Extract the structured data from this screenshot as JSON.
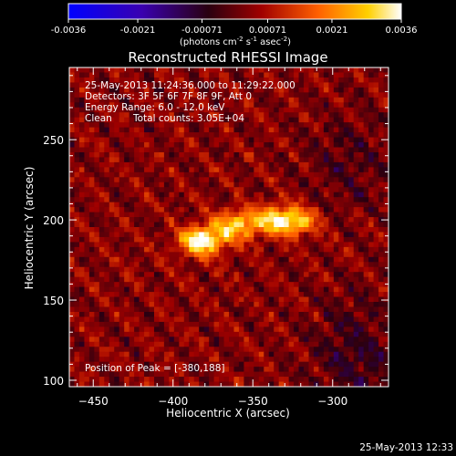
{
  "chart_data": {
    "type": "heatmap",
    "title": "Reconstructed RHESSI Image",
    "xlabel": "Heliocentric X (arcsec)",
    "ylabel": "Heliocentric Y (arcsec)",
    "xlim": [
      -465,
      -265
    ],
    "ylim": [
      96,
      295
    ],
    "x_ticks": [
      -450,
      -400,
      -350,
      -300
    ],
    "y_ticks": [
      100,
      150,
      200,
      250
    ],
    "colorbar": {
      "range": [
        -0.0036,
        0.0036
      ],
      "ticks": [
        "-0.0036",
        "-0.0021",
        "-0.00071",
        "0.00071",
        "0.0021",
        "0.0036"
      ],
      "unit_label": "(photons cm",
      "unit_sup1": "-2",
      "unit_mid": " s",
      "unit_sup2": "-1",
      "unit_mid2": " asec",
      "unit_sup3": "-2",
      "unit_end": ")",
      "colormap": "blue-purple-red-orange-yellow-white"
    },
    "annotations": {
      "line1": "25-May-2013 11:24:36.000 to 11:29:22.000",
      "line2": "Detectors: 3F 5F 6F 7F 8F 9F, Att 0",
      "line3": "Energy Range: 6.0 - 12.0 keV",
      "line4_a": "Clean",
      "line4_b": "Total counts: 3.05E+04",
      "peak_label": "Position of Peak = [-380,188]"
    },
    "peak": {
      "x": -380,
      "y": 188
    },
    "source": {
      "description_points": [
        {
          "x": -382,
          "y": 187,
          "amp": 0.0036
        },
        {
          "x": -360,
          "y": 197,
          "amp": 0.0026
        },
        {
          "x": -335,
          "y": 200,
          "amp": 0.0024
        },
        {
          "x": -322,
          "y": 199,
          "amp": 0.0018
        }
      ]
    }
  },
  "footer": {
    "timestamp": "25-May-2013 12:33"
  }
}
